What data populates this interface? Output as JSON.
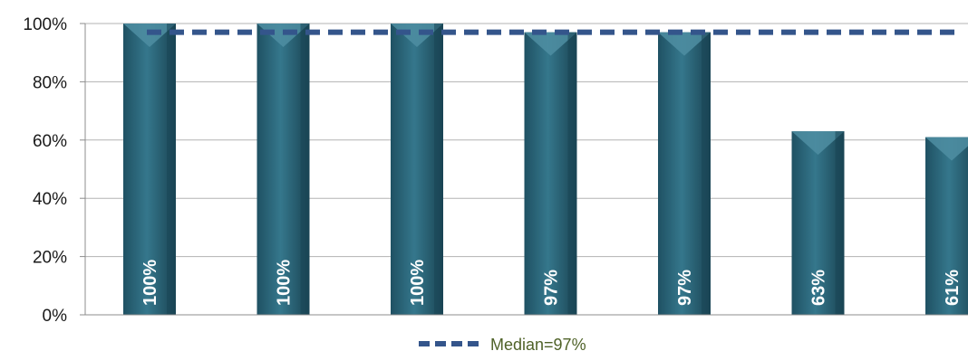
{
  "chart_data": {
    "type": "bar",
    "categories": [
      "",
      "",
      "",
      "",
      "",
      "",
      ""
    ],
    "values": [
      100,
      100,
      100,
      97,
      97,
      63,
      61
    ],
    "data_labels": [
      "100%",
      "100%",
      "100%",
      "97%",
      "97%",
      "63%",
      "61%"
    ],
    "title": "",
    "xlabel": "",
    "ylabel": "",
    "ylim": [
      0,
      100
    ],
    "y_ticks": [
      0,
      20,
      40,
      60,
      80,
      100
    ],
    "y_tick_labels": [
      "0%",
      "20%",
      "40%",
      "60%",
      "80%",
      "100%"
    ],
    "grid": true,
    "legend_position": "bottom",
    "reference_line": {
      "label": "Median=97%",
      "value": 97,
      "style": "dashed"
    },
    "colors": {
      "bar": "#2b6478",
      "bar_dark": "#1a4656",
      "bar_light": "#4f8ea2",
      "median_line": "#34558b",
      "legend_text": "#4f6228",
      "grid": "#b3b3b3"
    }
  }
}
